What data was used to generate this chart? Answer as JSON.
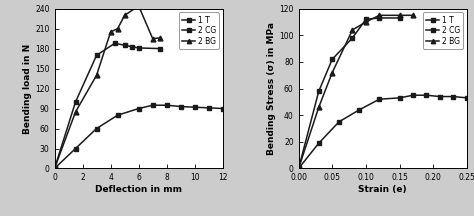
{
  "plot_a": {
    "xlabel": "Deflection in mm",
    "ylabel": "Bending load in N",
    "xlim": [
      0,
      12
    ],
    "ylim": [
      0,
      240
    ],
    "yticks": [
      0,
      30,
      60,
      90,
      120,
      150,
      180,
      210,
      240
    ],
    "xticks": [
      0,
      2,
      4,
      6,
      8,
      10,
      12
    ],
    "series": [
      {
        "label": "1 T",
        "marker": "s",
        "x": [
          0,
          1.5,
          3.0,
          4.5,
          6.0,
          7.0,
          8.0,
          9.0,
          10.0,
          11.0,
          12.0
        ],
        "y": [
          0,
          30,
          60,
          80,
          90,
          95,
          95,
          93,
          92,
          91,
          90
        ]
      },
      {
        "label": "2 CG",
        "marker": "s",
        "x": [
          0,
          1.5,
          3.0,
          4.3,
          5.0,
          5.5,
          6.0,
          7.5
        ],
        "y": [
          0,
          100,
          170,
          188,
          185,
          183,
          181,
          180
        ]
      },
      {
        "label": "2 BG",
        "marker": "^",
        "x": [
          0,
          1.5,
          3.0,
          4.0,
          4.5,
          5.0,
          6.0,
          7.0,
          7.5
        ],
        "y": [
          0,
          85,
          140,
          205,
          210,
          230,
          244,
          195,
          196
        ]
      }
    ]
  },
  "plot_b": {
    "xlabel": "Strain (e)",
    "ylabel": "Bending Stress (σ) in MPa",
    "xlim": [
      0,
      0.25
    ],
    "ylim": [
      0,
      120
    ],
    "yticks": [
      0,
      20,
      40,
      60,
      80,
      100,
      120
    ],
    "xticks": [
      0.0,
      0.05,
      0.1,
      0.15,
      0.2,
      0.25
    ],
    "series": [
      {
        "label": "1 T",
        "marker": "s",
        "x": [
          0,
          0.03,
          0.06,
          0.09,
          0.12,
          0.15,
          0.17,
          0.19,
          0.21,
          0.23,
          0.25
        ],
        "y": [
          0,
          19,
          35,
          44,
          52,
          53,
          55,
          55,
          54,
          54,
          53
        ]
      },
      {
        "label": "2 CG",
        "marker": "s",
        "x": [
          0,
          0.03,
          0.05,
          0.08,
          0.1,
          0.12,
          0.15
        ],
        "y": [
          0,
          58,
          82,
          98,
          112,
          113,
          113
        ]
      },
      {
        "label": "2 BG",
        "marker": "^",
        "x": [
          0,
          0.03,
          0.05,
          0.08,
          0.1,
          0.12,
          0.15,
          0.17
        ],
        "y": [
          0,
          46,
          72,
          104,
          110,
          115,
          115,
          115
        ]
      }
    ]
  },
  "line_color": "#1a1a1a",
  "marker_size": 3.5,
  "line_width": 1.1,
  "legend_fontsize": 5.5,
  "axis_label_fontsize": 6.5,
  "tick_fontsize": 5.5,
  "subtitle_fontsize": 8,
  "bg_color": "#ffffff",
  "outer_bg": "#cccccc"
}
